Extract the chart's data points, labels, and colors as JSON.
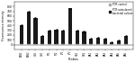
{
  "probes": [
    "BTB1",
    "BTB2",
    "Ud1",
    "Ud2",
    "FT1",
    "FT2",
    "YP1",
    "YP2",
    "GB1",
    "GB2",
    "BA1",
    "BA2",
    "BA3",
    "BA4",
    "BA5",
    "BA6"
  ],
  "autoclaved": [
    400,
    700,
    560,
    190,
    290,
    310,
    300,
    760,
    300,
    270,
    120,
    140,
    130,
    45,
    95,
    190
  ],
  "control": [
    10,
    10,
    10,
    10,
    10,
    10,
    10,
    10,
    10,
    10,
    10,
    10,
    10,
    10,
    10,
    10
  ],
  "bar_color_autoclaved": "#1a1a1a",
  "bar_color_control": "#aaaaaa",
  "ylabel": "Fluorescence intensity",
  "xlabel": "Probes",
  "ylim": [
    -100,
    900
  ],
  "yticks": [
    0,
    100,
    200,
    300,
    400,
    500,
    600,
    700,
    800
  ],
  "yticklabels": [
    "0",
    "100",
    "200",
    "300",
    "400",
    "500",
    "600",
    "700",
    "800"
  ]
}
